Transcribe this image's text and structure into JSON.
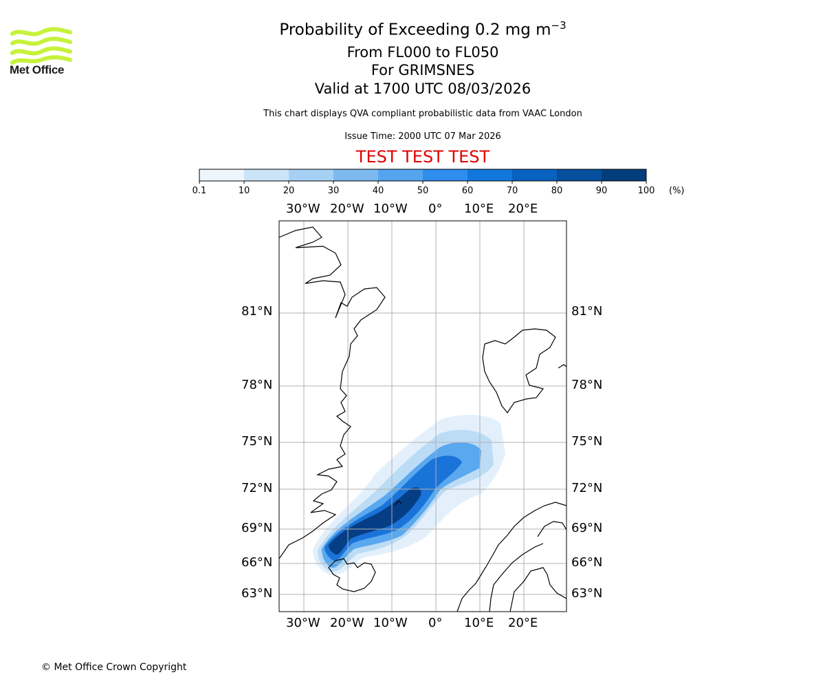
{
  "header": {
    "logo_text": "Met Office",
    "title_prefix": "Probability of Exceeding 0.2 mg m",
    "title_exponent": "−3",
    "levels": "From FL000 to FL050",
    "location": "For GRIMSNES",
    "valid": "Valid at 1700 UTC 08/03/2026",
    "description": "This chart displays QVA compliant probabilistic data from VAAC London",
    "issue_time": "Issue Time: 2000 UTC 07 Mar 2026",
    "test_banner": "TEST TEST TEST",
    "test_color": "#e00000"
  },
  "colorbar": {
    "ticks": [
      "0.1",
      "10",
      "20",
      "30",
      "40",
      "50",
      "60",
      "70",
      "80",
      "90",
      "100"
    ],
    "unit": "(%)",
    "colors": [
      "#eef6fd",
      "#cbe5f8",
      "#a6d1f5",
      "#7dbaf0",
      "#55a4ee",
      "#2f8ded",
      "#1277dc",
      "#0862c0",
      "#054f9d",
      "#033e7c",
      "#022e5c"
    ]
  },
  "map": {
    "lon_labels": [
      "30°W",
      "20°W",
      "10°W",
      "0°",
      "10°E",
      "20°E"
    ],
    "lat_labels": [
      "81°N",
      "78°N",
      "75°N",
      "72°N",
      "69°N",
      "66°N",
      "63°N"
    ],
    "plume_color": "#1277dc"
  },
  "footer": {
    "copyright": "© Met Office Crown Copyright"
  }
}
